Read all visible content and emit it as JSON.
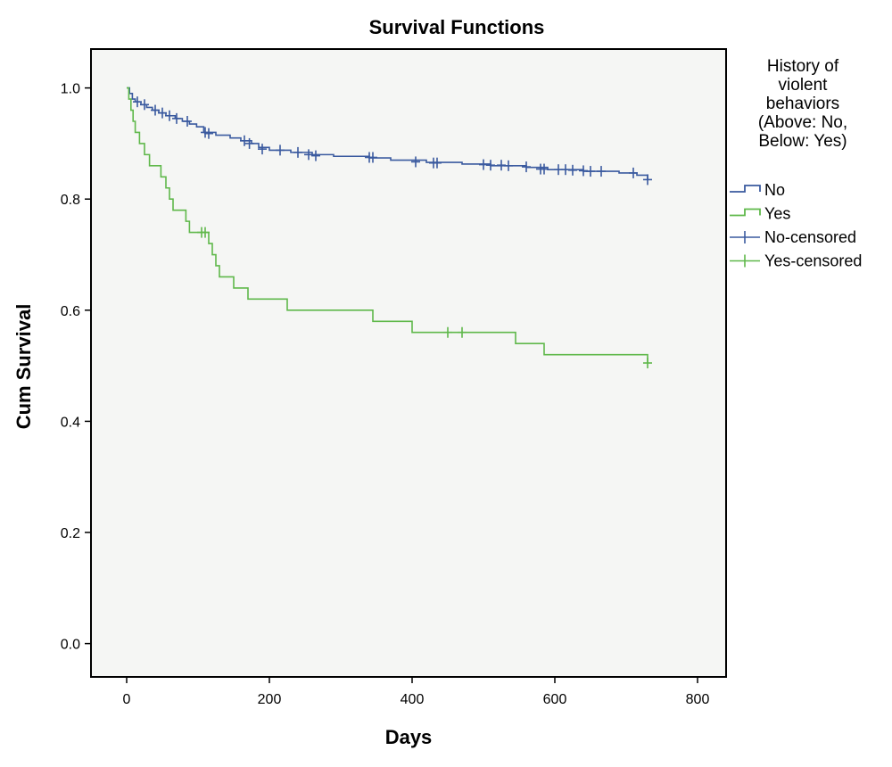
{
  "chart_data": {
    "type": "line",
    "title": "Survival Functions",
    "xlabel": "Days",
    "ylabel": "Cum Survival",
    "xlim": [
      -50,
      840
    ],
    "ylim": [
      -0.06,
      1.07
    ],
    "xticks": [
      0,
      200,
      400,
      600,
      800
    ],
    "xtick_labels": [
      "0",
      "200",
      "400",
      "600",
      "800"
    ],
    "yticks": [
      0.0,
      0.2,
      0.4,
      0.6,
      0.8,
      1.0
    ],
    "ytick_labels": [
      "0.0",
      "0.2",
      "0.4",
      "0.6",
      "0.8",
      "1.0"
    ],
    "grid": false,
    "legend": {
      "placement": "right",
      "title_lines": [
        "History of",
        "violent",
        "behaviors",
        "(Above: No,",
        "Below: Yes)"
      ],
      "entries": [
        {
          "label": "No",
          "kind": "line",
          "color": "#3a5a9f"
        },
        {
          "label": "Yes",
          "kind": "line",
          "color": "#5fb84a"
        },
        {
          "label": "No-censored",
          "kind": "censor",
          "color": "#3a5a9f"
        },
        {
          "label": "Yes-censored",
          "kind": "censor",
          "color": "#5fb84a"
        }
      ]
    },
    "series": [
      {
        "name": "No",
        "color": "#3a5a9f",
        "steps": [
          [
            0,
            1.0
          ],
          [
            4,
            0.99
          ],
          [
            8,
            0.98
          ],
          [
            12,
            0.975
          ],
          [
            20,
            0.97
          ],
          [
            28,
            0.965
          ],
          [
            36,
            0.96
          ],
          [
            45,
            0.955
          ],
          [
            55,
            0.95
          ],
          [
            68,
            0.945
          ],
          [
            78,
            0.94
          ],
          [
            88,
            0.935
          ],
          [
            98,
            0.93
          ],
          [
            108,
            0.92
          ],
          [
            125,
            0.915
          ],
          [
            145,
            0.91
          ],
          [
            160,
            0.905
          ],
          [
            175,
            0.9
          ],
          [
            185,
            0.893
          ],
          [
            200,
            0.888
          ],
          [
            230,
            0.884
          ],
          [
            260,
            0.88
          ],
          [
            290,
            0.877
          ],
          [
            340,
            0.874
          ],
          [
            370,
            0.87
          ],
          [
            420,
            0.866
          ],
          [
            470,
            0.863
          ],
          [
            510,
            0.86
          ],
          [
            560,
            0.857
          ],
          [
            590,
            0.853
          ],
          [
            640,
            0.85
          ],
          [
            690,
            0.847
          ],
          [
            715,
            0.843
          ],
          [
            730,
            0.835
          ]
        ],
        "censored": [
          [
            15,
            0.975
          ],
          [
            25,
            0.97
          ],
          [
            40,
            0.96
          ],
          [
            50,
            0.955
          ],
          [
            60,
            0.95
          ],
          [
            70,
            0.945
          ],
          [
            85,
            0.94
          ],
          [
            110,
            0.92
          ],
          [
            115,
            0.918
          ],
          [
            165,
            0.905
          ],
          [
            172,
            0.9
          ],
          [
            190,
            0.89
          ],
          [
            215,
            0.888
          ],
          [
            240,
            0.884
          ],
          [
            255,
            0.88
          ],
          [
            265,
            0.878
          ],
          [
            340,
            0.875
          ],
          [
            345,
            0.875
          ],
          [
            405,
            0.867
          ],
          [
            430,
            0.865
          ],
          [
            435,
            0.865
          ],
          [
            500,
            0.862
          ],
          [
            510,
            0.861
          ],
          [
            525,
            0.861
          ],
          [
            535,
            0.86
          ],
          [
            560,
            0.858
          ],
          [
            580,
            0.854
          ],
          [
            585,
            0.854
          ],
          [
            605,
            0.853
          ],
          [
            615,
            0.853
          ],
          [
            625,
            0.852
          ],
          [
            640,
            0.851
          ],
          [
            650,
            0.85
          ],
          [
            665,
            0.85
          ],
          [
            710,
            0.847
          ],
          [
            730,
            0.835
          ]
        ]
      },
      {
        "name": "Yes",
        "color": "#5fb84a",
        "steps": [
          [
            0,
            1.0
          ],
          [
            3,
            0.98
          ],
          [
            6,
            0.96
          ],
          [
            9,
            0.94
          ],
          [
            12,
            0.92
          ],
          [
            18,
            0.9
          ],
          [
            25,
            0.88
          ],
          [
            32,
            0.86
          ],
          [
            48,
            0.84
          ],
          [
            55,
            0.82
          ],
          [
            60,
            0.8
          ],
          [
            65,
            0.78
          ],
          [
            83,
            0.76
          ],
          [
            88,
            0.74
          ],
          [
            108,
            0.74
          ],
          [
            115,
            0.72
          ],
          [
            120,
            0.7
          ],
          [
            125,
            0.68
          ],
          [
            130,
            0.66
          ],
          [
            150,
            0.64
          ],
          [
            170,
            0.62
          ],
          [
            225,
            0.6
          ],
          [
            345,
            0.58
          ],
          [
            400,
            0.56
          ],
          [
            545,
            0.54
          ],
          [
            585,
            0.52
          ],
          [
            730,
            0.505
          ]
        ],
        "censored": [
          [
            105,
            0.74
          ],
          [
            110,
            0.74
          ],
          [
            450,
            0.56
          ],
          [
            470,
            0.56
          ],
          [
            730,
            0.505
          ]
        ]
      }
    ]
  }
}
